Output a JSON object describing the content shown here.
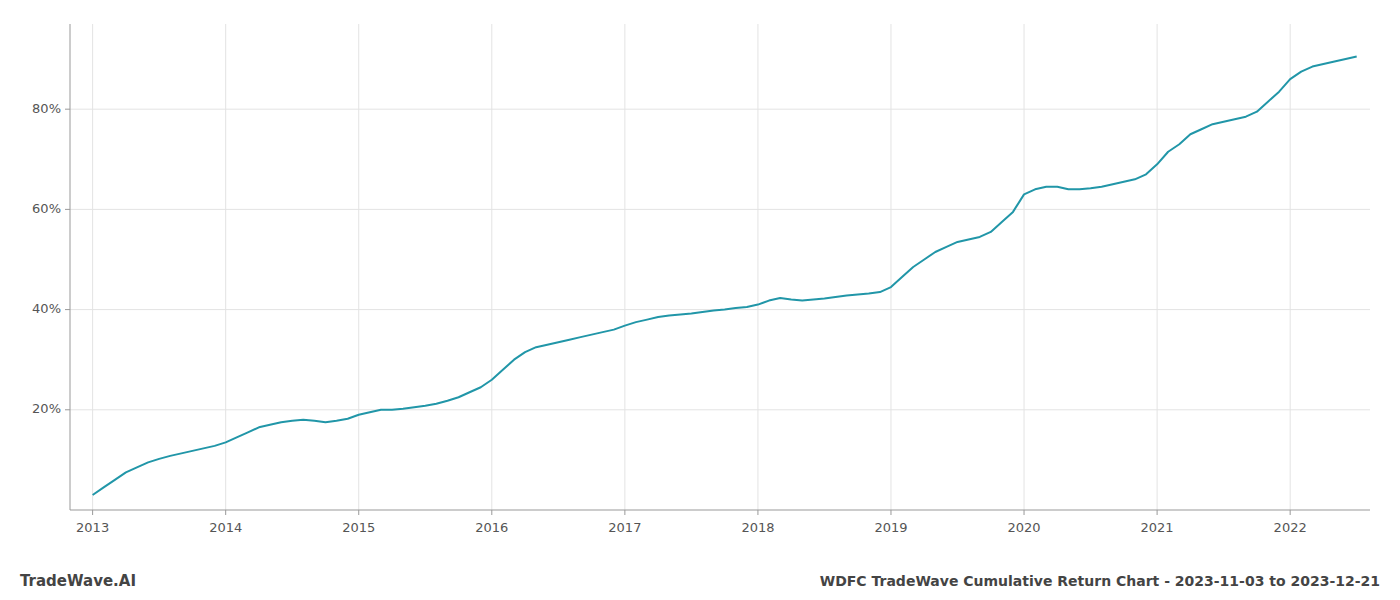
{
  "chart_data": {
    "type": "line",
    "title": "WDFC TradeWave Cumulative Return Chart - 2023-11-03 to 2023-12-21",
    "annotations": [
      "TradeWave.AI"
    ],
    "color": "#2196a8",
    "grid": true,
    "x": [
      2013.0,
      2013.083,
      2013.167,
      2013.25,
      2013.333,
      2013.417,
      2013.5,
      2013.583,
      2013.667,
      2013.75,
      2013.833,
      2013.917,
      2014.0,
      2014.083,
      2014.167,
      2014.25,
      2014.333,
      2014.417,
      2014.5,
      2014.583,
      2014.667,
      2014.75,
      2014.833,
      2014.917,
      2015.0,
      2015.083,
      2015.167,
      2015.25,
      2015.333,
      2015.417,
      2015.5,
      2015.583,
      2015.667,
      2015.75,
      2015.833,
      2015.917,
      2016.0,
      2016.083,
      2016.167,
      2016.25,
      2016.333,
      2016.417,
      2016.5,
      2016.583,
      2016.667,
      2016.75,
      2016.833,
      2016.917,
      2017.0,
      2017.083,
      2017.167,
      2017.25,
      2017.333,
      2017.417,
      2017.5,
      2017.583,
      2017.667,
      2017.75,
      2017.833,
      2017.917,
      2018.0,
      2018.083,
      2018.167,
      2018.25,
      2018.333,
      2018.417,
      2018.5,
      2018.583,
      2018.667,
      2018.75,
      2018.833,
      2018.917,
      2019.0,
      2019.083,
      2019.167,
      2019.25,
      2019.333,
      2019.417,
      2019.5,
      2019.583,
      2019.667,
      2019.75,
      2019.833,
      2019.917,
      2020.0,
      2020.083,
      2020.167,
      2020.25,
      2020.333,
      2020.417,
      2020.5,
      2020.583,
      2020.667,
      2020.75,
      2020.833,
      2020.917,
      2021.0,
      2021.083,
      2021.167,
      2021.25,
      2021.333,
      2021.417,
      2021.5,
      2021.583,
      2021.667,
      2021.75,
      2021.833,
      2021.917,
      2022.0,
      2022.083,
      2022.167,
      2022.25,
      2022.333,
      2022.417,
      2022.5
    ],
    "values": [
      3.0,
      4.5,
      6.0,
      7.5,
      8.5,
      9.5,
      10.2,
      10.8,
      11.3,
      11.8,
      12.3,
      12.8,
      13.5,
      14.5,
      15.5,
      16.5,
      17.0,
      17.5,
      17.8,
      18.0,
      17.8,
      17.5,
      17.8,
      18.2,
      19.0,
      19.5,
      20.0,
      20.0,
      20.2,
      20.5,
      20.8,
      21.2,
      21.8,
      22.5,
      23.5,
      24.5,
      26.0,
      28.0,
      30.0,
      31.5,
      32.5,
      33.0,
      33.5,
      34.0,
      34.5,
      35.0,
      35.5,
      36.0,
      36.8,
      37.5,
      38.0,
      38.5,
      38.8,
      39.0,
      39.2,
      39.5,
      39.8,
      40.0,
      40.3,
      40.5,
      41.0,
      41.8,
      42.3,
      42.0,
      41.8,
      42.0,
      42.2,
      42.5,
      42.8,
      43.0,
      43.2,
      43.5,
      44.5,
      46.5,
      48.5,
      50.0,
      51.5,
      52.5,
      53.5,
      54.0,
      54.5,
      55.5,
      57.5,
      59.5,
      63.0,
      64.0,
      64.5,
      64.5,
      64.0,
      64.0,
      64.2,
      64.5,
      65.0,
      65.5,
      66.0,
      67.0,
      69.0,
      71.5,
      73.0,
      75.0,
      76.0,
      77.0,
      77.5,
      78.0,
      78.5,
      79.5,
      81.5,
      83.5,
      86.0,
      87.5,
      88.5,
      89.0,
      89.5,
      90.0,
      90.5
    ],
    "xlim": [
      2012.83,
      2022.6
    ],
    "xticks": [
      2013,
      2014,
      2015,
      2016,
      2017,
      2018,
      2019,
      2020,
      2021,
      2022
    ],
    "ylim": [
      0,
      97
    ],
    "yticks": [
      {
        "value": 20,
        "label": "20%"
      },
      {
        "value": 40,
        "label": "40%"
      },
      {
        "value": 60,
        "label": "60%"
      },
      {
        "value": 80,
        "label": "80%"
      }
    ]
  }
}
